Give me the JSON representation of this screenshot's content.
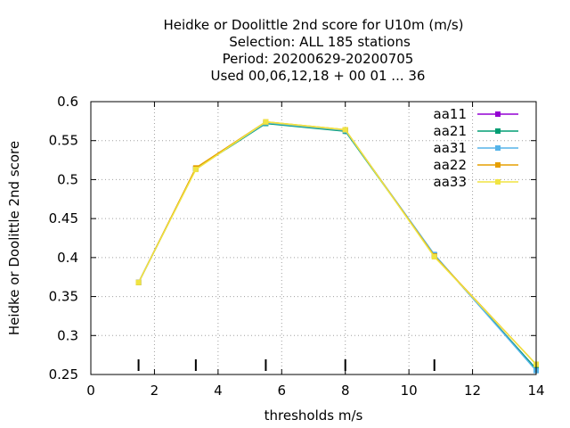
{
  "chart_data": {
    "type": "line",
    "title_lines": [
      "Heidke or Doolittle 2nd score  for U10m (m/s)",
      "Selection: ALL    185 stations",
      "Period: 20200629-20200705",
      "Used  00,06,12,18 + 00 01 ... 36"
    ],
    "xlabel": "thresholds m/s",
    "ylabel": "Heidke or Doolittle 2nd score",
    "xlim": [
      0,
      14
    ],
    "ylim": [
      0.25,
      0.6
    ],
    "xticks": [
      0,
      2,
      4,
      6,
      8,
      10,
      12,
      14
    ],
    "yticks": [
      0.25,
      0.3,
      0.35,
      0.4,
      0.45,
      0.5,
      0.55,
      0.6
    ],
    "xtick_labels": [
      "0",
      "2",
      "4",
      "6",
      "8",
      "10",
      "12",
      "14"
    ],
    "ytick_labels": [
      "0.25",
      "0.3",
      "0.35",
      "0.4",
      "0.45",
      "0.5",
      "0.55",
      "0.6"
    ],
    "grid": true,
    "legend_position": "top-right",
    "threshold_markers": [
      1.5,
      3.3,
      5.5,
      8.0,
      10.8
    ],
    "x": [
      1.5,
      3.3,
      5.5,
      8.0,
      10.8,
      14.0
    ],
    "series": [
      {
        "name": "aa11",
        "color": "#9400d3",
        "values": [
          0.368,
          0.514,
          0.573,
          0.563,
          0.403,
          0.257
        ]
      },
      {
        "name": "aa21",
        "color": "#009e73",
        "values": [
          0.368,
          0.514,
          0.572,
          0.562,
          0.403,
          0.257
        ]
      },
      {
        "name": "aa31",
        "color": "#56b4e9",
        "values": [
          0.368,
          0.514,
          0.573,
          0.563,
          0.404,
          0.255
        ]
      },
      {
        "name": "aa22",
        "color": "#e69f00",
        "values": [
          0.368,
          0.515,
          0.574,
          0.564,
          0.402,
          0.263
        ]
      },
      {
        "name": "aa33",
        "color": "#f0e442",
        "values": [
          0.368,
          0.513,
          0.574,
          0.564,
          0.401,
          0.263
        ]
      }
    ]
  }
}
